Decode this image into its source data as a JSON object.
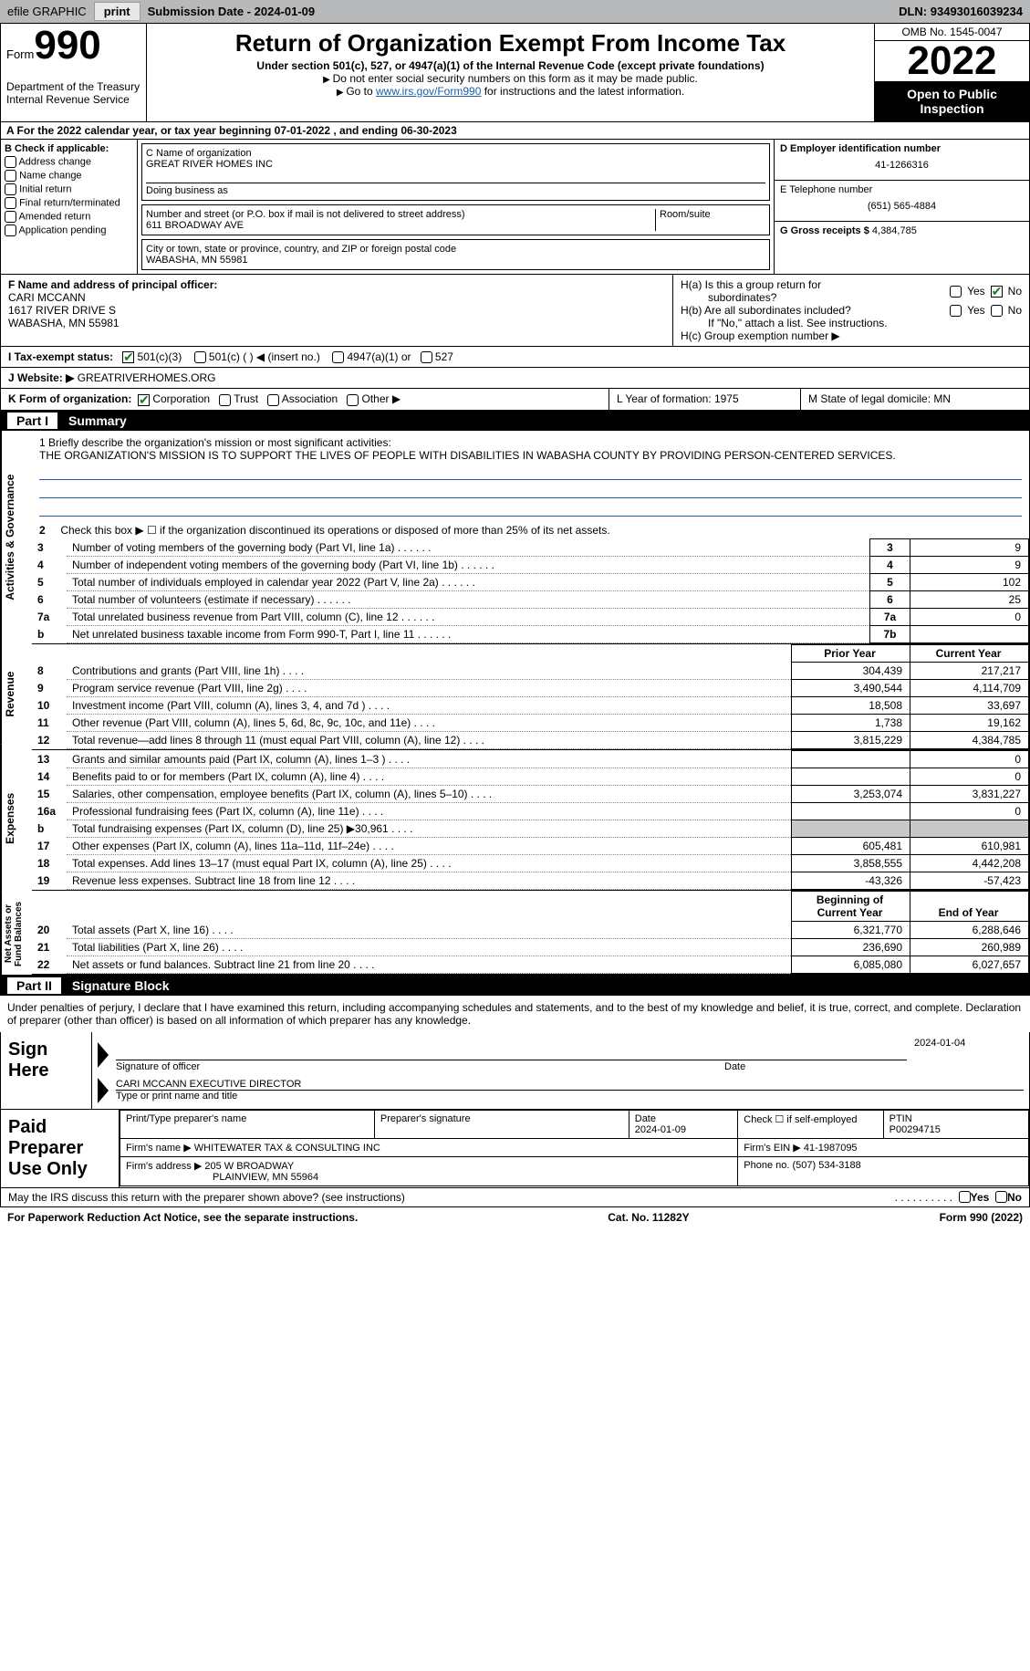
{
  "topbar": {
    "efile_label": "efile GRAPHIC",
    "print_btn": "print",
    "submission_label": "Submission Date - ",
    "submission_date": "2024-01-09",
    "dln_label": "DLN: ",
    "dln": "93493016039234"
  },
  "header": {
    "form_label": "Form",
    "form_number": "990",
    "dept": "Department of the Treasury",
    "irs": "Internal Revenue Service",
    "title": "Return of Organization Exempt From Income Tax",
    "sub1": "Under section 501(c), 527, or 4947(a)(1) of the Internal Revenue Code (except private foundations)",
    "sub2": "Do not enter social security numbers on this form as it may be made public.",
    "sub3_pre": "Go to ",
    "sub3_link": "www.irs.gov/Form990",
    "sub3_post": " for instructions and the latest information.",
    "omb": "OMB No. 1545-0047",
    "year": "2022",
    "otp": "Open to Public Inspection"
  },
  "rowA": "A For the 2022 calendar year, or tax year beginning 07-01-2022    , and ending 06-30-2023",
  "secB": {
    "label": "B Check if applicable:",
    "opts": [
      "Address change",
      "Name change",
      "Initial return",
      "Final return/terminated",
      "Amended return",
      "Application pending"
    ],
    "c_label": "C Name of organization",
    "org_name": "GREAT RIVER HOMES INC",
    "dba_label": "Doing business as",
    "street_label": "Number and street (or P.O. box if mail is not delivered to street address)",
    "street": "611 BROADWAY AVE",
    "room_label": "Room/suite",
    "city_label": "City or town, state or province, country, and ZIP or foreign postal code",
    "city": "WABASHA, MN  55981",
    "d_label": "D Employer identification number",
    "ein": "41-1266316",
    "e_label": "E Telephone number",
    "phone": "(651) 565-4884",
    "g_label": "G Gross receipts $ ",
    "gross": "4,384,785"
  },
  "secF": {
    "label": "F  Name and address of principal officer:",
    "name": "CARI MCCANN",
    "addr1": "1617 RIVER DRIVE S",
    "addr2": "WABASHA, MN  55981"
  },
  "secH": {
    "ha1": "H(a)  Is this a group return for",
    "ha2": "subordinates?",
    "hb1": "H(b)  Are all subordinates included?",
    "hb2": "If \"No,\" attach a list. See instructions.",
    "hc": "H(c)  Group exemption number ▶",
    "yes": "Yes",
    "no": "No"
  },
  "rowI": {
    "label": "I    Tax-exempt status:",
    "o1": "501(c)(3)",
    "o2": "501(c) (  ) ◀ (insert no.)",
    "o3": "4947(a)(1) or",
    "o4": "527"
  },
  "rowJ": {
    "label": "J    Website: ▶",
    "value": "  GREATRIVERHOMES.ORG"
  },
  "rowK": {
    "k1_label": "K Form of organization:",
    "corp": "Corporation",
    "trust": "Trust",
    "assoc": "Association",
    "other": "Other ▶",
    "k2": "L Year of formation: 1975",
    "k3": "M State of legal domicile: MN"
  },
  "part1": {
    "label": "Part I",
    "title": "Summary",
    "mission_label": "1   Briefly describe the organization's mission or most significant activities:",
    "mission": "THE ORGANIZATION'S MISSION IS TO SUPPORT THE LIVES OF PEOPLE WITH DISABILITIES IN WABASHA COUNTY BY PROVIDING PERSON-CENTERED SERVICES.",
    "line2": "Check this box ▶ ☐  if the organization discontinued its operations or disposed of more than 25% of its net assets.",
    "tabs": {
      "ag": "Activities & Governance",
      "rev": "Revenue",
      "exp": "Expenses",
      "net": "Net Assets or Fund Balances"
    },
    "rows_ag": [
      {
        "n": "3",
        "d": "Number of voting members of the governing body (Part VI, line 1a)",
        "box": "3",
        "v": "9"
      },
      {
        "n": "4",
        "d": "Number of independent voting members of the governing body (Part VI, line 1b)",
        "box": "4",
        "v": "9"
      },
      {
        "n": "5",
        "d": "Total number of individuals employed in calendar year 2022 (Part V, line 2a)",
        "box": "5",
        "v": "102"
      },
      {
        "n": "6",
        "d": "Total number of volunteers (estimate if necessary)",
        "box": "6",
        "v": "25"
      },
      {
        "n": "7a",
        "d": "Total unrelated business revenue from Part VIII, column (C), line 12",
        "box": "7a",
        "v": "0"
      },
      {
        "n": "b",
        "d": "Net unrelated business taxable income from Form 990-T, Part I, line 11",
        "box": "7b",
        "v": ""
      }
    ],
    "hdr_py": "Prior Year",
    "hdr_cy": "Current Year",
    "rows_rev": [
      {
        "n": "8",
        "d": "Contributions and grants (Part VIII, line 1h)",
        "py": "304,439",
        "cy": "217,217"
      },
      {
        "n": "9",
        "d": "Program service revenue (Part VIII, line 2g)",
        "py": "3,490,544",
        "cy": "4,114,709"
      },
      {
        "n": "10",
        "d": "Investment income (Part VIII, column (A), lines 3, 4, and 7d )",
        "py": "18,508",
        "cy": "33,697"
      },
      {
        "n": "11",
        "d": "Other revenue (Part VIII, column (A), lines 5, 6d, 8c, 9c, 10c, and 11e)",
        "py": "1,738",
        "cy": "19,162"
      },
      {
        "n": "12",
        "d": "Total revenue—add lines 8 through 11 (must equal Part VIII, column (A), line 12)",
        "py": "3,815,229",
        "cy": "4,384,785"
      }
    ],
    "rows_exp": [
      {
        "n": "13",
        "d": "Grants and similar amounts paid (Part IX, column (A), lines 1–3 )",
        "py": "",
        "cy": "0"
      },
      {
        "n": "14",
        "d": "Benefits paid to or for members (Part IX, column (A), line 4)",
        "py": "",
        "cy": "0"
      },
      {
        "n": "15",
        "d": "Salaries, other compensation, employee benefits (Part IX, column (A), lines 5–10)",
        "py": "3,253,074",
        "cy": "3,831,227"
      },
      {
        "n": "16a",
        "d": "Professional fundraising fees (Part IX, column (A), line 11e)",
        "py": "",
        "cy": "0"
      },
      {
        "n": "b",
        "d": "Total fundraising expenses (Part IX, column (D), line 25) ▶30,961",
        "py": "grey",
        "cy": "grey"
      },
      {
        "n": "17",
        "d": "Other expenses (Part IX, column (A), lines 11a–11d, 11f–24e)",
        "py": "605,481",
        "cy": "610,981"
      },
      {
        "n": "18",
        "d": "Total expenses. Add lines 13–17 (must equal Part IX, column (A), line 25)",
        "py": "3,858,555",
        "cy": "4,442,208"
      },
      {
        "n": "19",
        "d": "Revenue less expenses. Subtract line 18 from line 12",
        "py": "-43,326",
        "cy": "-57,423"
      }
    ],
    "hdr_boy": "Beginning of Current Year",
    "hdr_eoy": "End of Year",
    "rows_net": [
      {
        "n": "20",
        "d": "Total assets (Part X, line 16)",
        "py": "6,321,770",
        "cy": "6,288,646"
      },
      {
        "n": "21",
        "d": "Total liabilities (Part X, line 26)",
        "py": "236,690",
        "cy": "260,989"
      },
      {
        "n": "22",
        "d": "Net assets or fund balances. Subtract line 21 from line 20",
        "py": "6,085,080",
        "cy": "6,027,657"
      }
    ]
  },
  "part2": {
    "label": "Part II",
    "title": "Signature Block",
    "intro": "Under penalties of perjury, I declare that I have examined this return, including accompanying schedules and statements, and to the best of my knowledge and belief, it is true, correct, and complete. Declaration of preparer (other than officer) is based on all information of which preparer has any knowledge.",
    "sign_here": "Sign Here",
    "sig_officer": "Signature of officer",
    "sig_date": "Date",
    "sig_date_val": "2024-01-04",
    "officer_name": "CARI MCCANN  EXECUTIVE DIRECTOR",
    "type_name": "Type or print name and title",
    "paid": "Paid Preparer Use Only",
    "p_name_label": "Print/Type preparer's name",
    "p_sig_label": "Preparer's signature",
    "p_date_label": "Date",
    "p_date_val": "2024-01-09",
    "p_check_label": "Check ☐ if self-employed",
    "ptin_label": "PTIN",
    "ptin": "P00294715",
    "firm_name_label": "Firm's name    ▶",
    "firm_name": "WHITEWATER TAX & CONSULTING INC",
    "firm_ein_label": "Firm's EIN ▶",
    "firm_ein": "41-1987095",
    "firm_addr_label": "Firm's address ▶",
    "firm_addr1": "205 W BROADWAY",
    "firm_addr2": "PLAINVIEW, MN  55964",
    "firm_phone_label": "Phone no.",
    "firm_phone": "(507) 534-3188",
    "discuss": "May the IRS discuss this return with the preparer shown above? (see instructions)"
  },
  "footer": {
    "pra": "For Paperwork Reduction Act Notice, see the separate instructions.",
    "cat": "Cat. No. 11282Y",
    "form": "Form 990 (2022)"
  }
}
